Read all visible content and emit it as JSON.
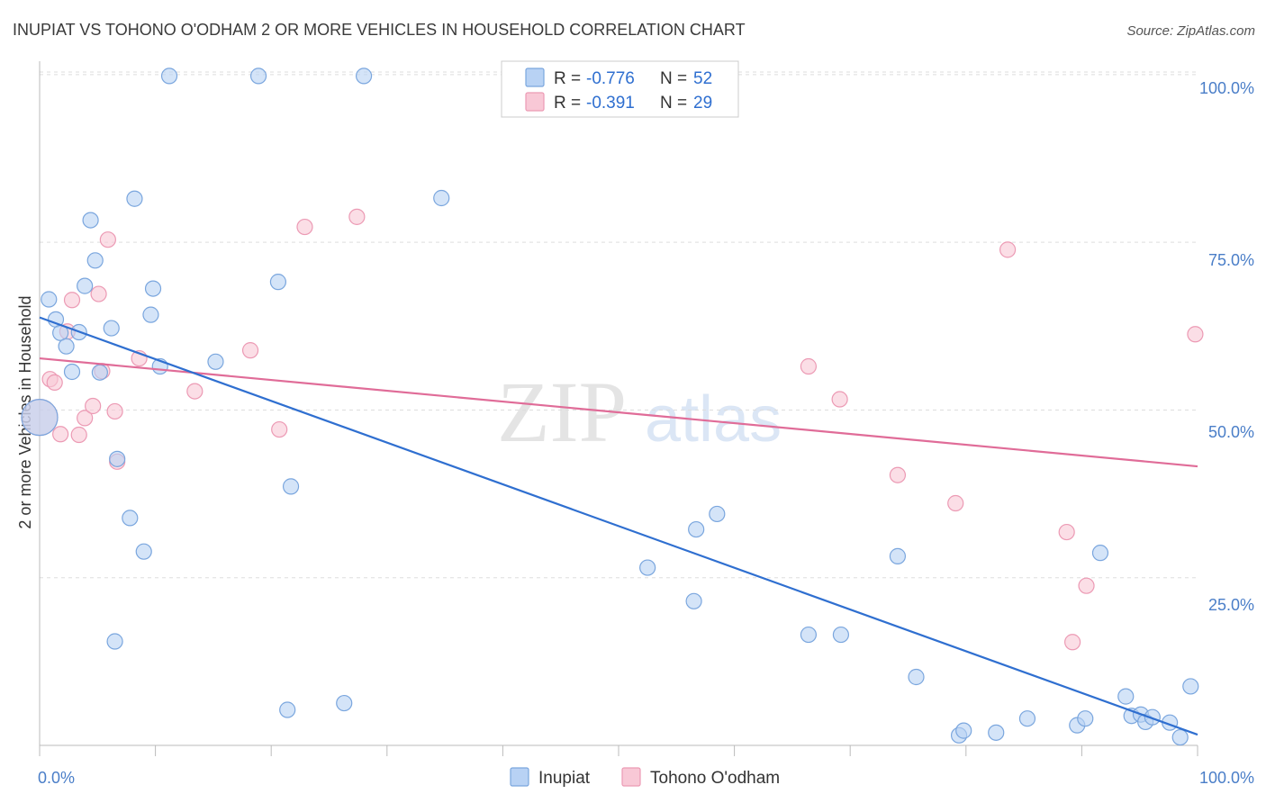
{
  "header": {
    "title": "INUPIAT VS TOHONO O'ODHAM 2 OR MORE VEHICLES IN HOUSEHOLD CORRELATION CHART",
    "source": "Source: ZipAtlas.com"
  },
  "watermark": {
    "zip": "ZIP",
    "atlas": "atlas"
  },
  "legend": {
    "r_label": "R =",
    "n_label": "N =",
    "rows": [
      {
        "r": "-0.776",
        "n": "52"
      },
      {
        "r": "-0.391",
        "n": "29"
      }
    ]
  },
  "colors": {
    "inupiat_fill": "#b8d2f4",
    "inupiat_stroke": "#7aa6de",
    "inupiat_line": "#2f6fd0",
    "tohono_fill": "#f8c8d6",
    "tohono_stroke": "#ec9ab4",
    "tohono_line": "#e06c98",
    "grid": "#dddddd",
    "tick_text": "#4a7ec8"
  },
  "chart_data": {
    "type": "scatter",
    "title": "INUPIAT VS TOHONO O'ODHAM 2 OR MORE VEHICLES IN HOUSEHOLD CORRELATION CHART",
    "xlabel": "",
    "ylabel": "2 or more Vehicles in Household",
    "xlim": [
      0,
      100
    ],
    "ylim": [
      0,
      102
    ],
    "x_ticks": [
      "0.0%",
      "100.0%"
    ],
    "y_ticks": [
      {
        "value": 25,
        "label": "25.0%"
      },
      {
        "value": 50,
        "label": "50.0%"
      },
      {
        "value": 75,
        "label": "75.0%"
      },
      {
        "value": 100,
        "label": "100.0%"
      }
    ],
    "grid": "horizontal dashed",
    "legend_placement": "top-center",
    "series": [
      {
        "name": "Inupiat",
        "r": -0.776,
        "n": 52,
        "trend": {
          "x": [
            0,
            100
          ],
          "y": [
            63.8,
            1.6
          ]
        },
        "points": [
          {
            "x": 0.0,
            "y": 48.9,
            "big": true
          },
          {
            "x": 0.8,
            "y": 66.5
          },
          {
            "x": 1.4,
            "y": 63.5
          },
          {
            "x": 1.8,
            "y": 61.5
          },
          {
            "x": 2.3,
            "y": 59.5
          },
          {
            "x": 2.8,
            "y": 55.7
          },
          {
            "x": 3.4,
            "y": 61.6
          },
          {
            "x": 3.9,
            "y": 68.5
          },
          {
            "x": 4.4,
            "y": 78.3
          },
          {
            "x": 4.8,
            "y": 72.3
          },
          {
            "x": 5.2,
            "y": 55.6
          },
          {
            "x": 6.2,
            "y": 62.2
          },
          {
            "x": 6.5,
            "y": 15.5
          },
          {
            "x": 6.7,
            "y": 42.7
          },
          {
            "x": 7.8,
            "y": 33.9
          },
          {
            "x": 8.2,
            "y": 81.5
          },
          {
            "x": 9.0,
            "y": 28.9
          },
          {
            "x": 9.6,
            "y": 64.2
          },
          {
            "x": 9.8,
            "y": 68.1
          },
          {
            "x": 10.4,
            "y": 56.5
          },
          {
            "x": 11.2,
            "y": 99.8
          },
          {
            "x": 15.2,
            "y": 57.2
          },
          {
            "x": 18.9,
            "y": 99.8
          },
          {
            "x": 20.6,
            "y": 69.1
          },
          {
            "x": 21.4,
            "y": 5.3
          },
          {
            "x": 21.7,
            "y": 38.6
          },
          {
            "x": 26.3,
            "y": 6.3
          },
          {
            "x": 28.0,
            "y": 99.8
          },
          {
            "x": 34.7,
            "y": 81.6
          },
          {
            "x": 52.5,
            "y": 26.5
          },
          {
            "x": 56.5,
            "y": 21.5
          },
          {
            "x": 56.7,
            "y": 32.2
          },
          {
            "x": 58.5,
            "y": 34.5
          },
          {
            "x": 66.4,
            "y": 16.5
          },
          {
            "x": 69.2,
            "y": 16.5
          },
          {
            "x": 74.1,
            "y": 28.2
          },
          {
            "x": 75.7,
            "y": 10.2
          },
          {
            "x": 79.4,
            "y": 1.5
          },
          {
            "x": 79.8,
            "y": 2.2
          },
          {
            "x": 82.6,
            "y": 1.9
          },
          {
            "x": 85.3,
            "y": 4.0
          },
          {
            "x": 89.6,
            "y": 3.0
          },
          {
            "x": 90.3,
            "y": 4.0
          },
          {
            "x": 91.6,
            "y": 28.7
          },
          {
            "x": 93.8,
            "y": 7.3
          },
          {
            "x": 94.3,
            "y": 4.4
          },
          {
            "x": 95.1,
            "y": 4.6
          },
          {
            "x": 95.5,
            "y": 3.5
          },
          {
            "x": 96.1,
            "y": 4.2
          },
          {
            "x": 97.6,
            "y": 3.4
          },
          {
            "x": 98.5,
            "y": 1.2
          },
          {
            "x": 99.4,
            "y": 8.8
          }
        ]
      },
      {
        "name": "Tohono O'odham",
        "r": -0.391,
        "n": 29,
        "trend": {
          "x": [
            0,
            100
          ],
          "y": [
            57.7,
            41.6
          ]
        },
        "points": [
          {
            "x": 0.0,
            "y": 48.9,
            "big": true
          },
          {
            "x": 0.9,
            "y": 54.6
          },
          {
            "x": 1.3,
            "y": 54.1
          },
          {
            "x": 1.8,
            "y": 46.4
          },
          {
            "x": 2.4,
            "y": 61.7
          },
          {
            "x": 2.8,
            "y": 66.4
          },
          {
            "x": 3.4,
            "y": 46.3
          },
          {
            "x": 3.9,
            "y": 48.8
          },
          {
            "x": 4.6,
            "y": 50.6
          },
          {
            "x": 5.1,
            "y": 67.3
          },
          {
            "x": 5.4,
            "y": 55.8
          },
          {
            "x": 5.9,
            "y": 75.4
          },
          {
            "x": 6.5,
            "y": 49.8
          },
          {
            "x": 6.7,
            "y": 42.3
          },
          {
            "x": 8.6,
            "y": 57.7
          },
          {
            "x": 13.4,
            "y": 52.8
          },
          {
            "x": 18.2,
            "y": 58.9
          },
          {
            "x": 20.7,
            "y": 47.1
          },
          {
            "x": 22.9,
            "y": 77.3
          },
          {
            "x": 27.4,
            "y": 78.8
          },
          {
            "x": 66.4,
            "y": 56.5
          },
          {
            "x": 69.1,
            "y": 51.6
          },
          {
            "x": 74.1,
            "y": 40.3
          },
          {
            "x": 79.1,
            "y": 36.1
          },
          {
            "x": 83.6,
            "y": 73.9
          },
          {
            "x": 88.7,
            "y": 31.8
          },
          {
            "x": 90.4,
            "y": 23.8
          },
          {
            "x": 89.2,
            "y": 15.4
          },
          {
            "x": 99.8,
            "y": 61.3
          }
        ]
      }
    ]
  }
}
